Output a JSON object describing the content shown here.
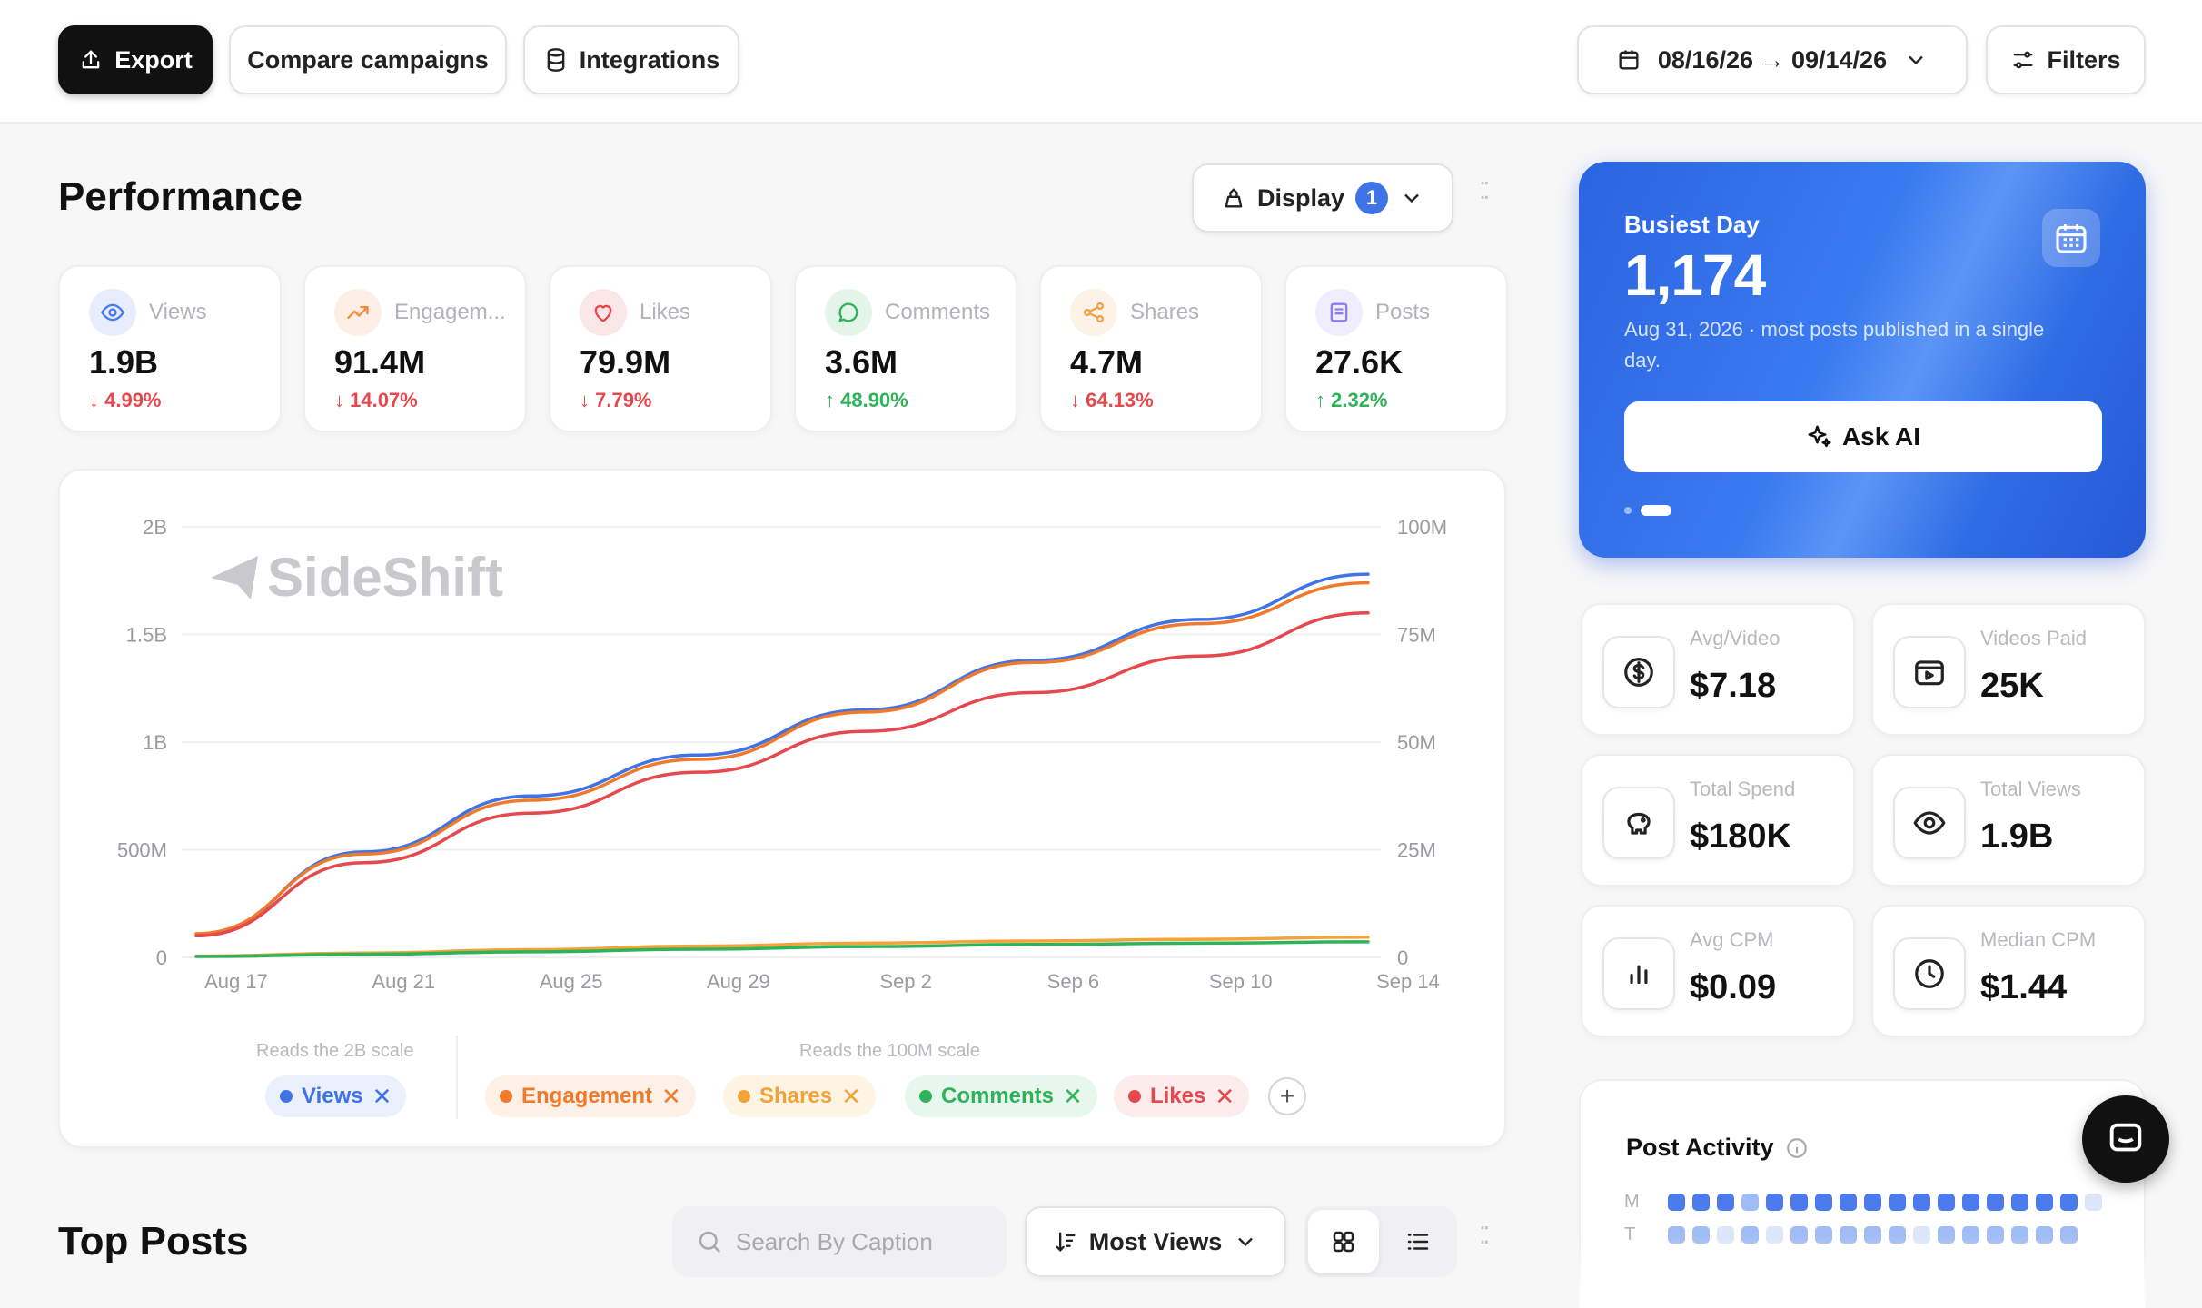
{
  "toolbar": {
    "export_label": "Export",
    "compare_label": "Compare campaigns",
    "integrations_label": "Integrations",
    "date_range": "08/16/26 → 09/14/26",
    "filters_label": "Filters"
  },
  "performance": {
    "title": "Performance",
    "display_label": "Display",
    "display_count": "1",
    "metrics": [
      {
        "label": "Views",
        "value": "1.9B",
        "delta": "↓ 4.99%",
        "trend": "down",
        "icon": "eye-icon",
        "color": "#4b7bec"
      },
      {
        "label": "Engagem...",
        "value": "91.4M",
        "delta": "↓ 14.07%",
        "trend": "down",
        "icon": "trend-up-icon",
        "color": "#f08a3c"
      },
      {
        "label": "Likes",
        "value": "79.9M",
        "delta": "↓ 7.79%",
        "trend": "down",
        "icon": "heart-icon",
        "color": "#e5484d"
      },
      {
        "label": "Comments",
        "value": "3.6M",
        "delta": "↑ 48.90%",
        "trend": "up",
        "icon": "comment-icon",
        "color": "#2fb35a"
      },
      {
        "label": "Shares",
        "value": "4.7M",
        "delta": "↓ 64.13%",
        "trend": "down",
        "icon": "share-icon",
        "color": "#f2a14a"
      },
      {
        "label": "Posts",
        "value": "27.6K",
        "delta": "↑ 2.32%",
        "trend": "up",
        "icon": "posts-icon",
        "color": "#8b7cf6"
      }
    ]
  },
  "chart": {
    "watermark": "SideShift",
    "left_scale_caption": "Reads the 2B scale",
    "right_scale_caption": "Reads the 100M scale",
    "legend": [
      {
        "name": "Views",
        "color": "#3f73e6",
        "bg": "#eaf1fd"
      },
      {
        "name": "Engagement",
        "color": "#f07a2c",
        "bg": "#fdf0e6"
      },
      {
        "name": "Shares",
        "color": "#f2a33a",
        "bg": "#fdf4e4"
      },
      {
        "name": "Comments",
        "color": "#2fb35a",
        "bg": "#e8f7ed"
      },
      {
        "name": "Likes",
        "color": "#e5484d",
        "bg": "#fdecec"
      }
    ]
  },
  "chart_data": {
    "type": "line",
    "x": [
      "Aug 17",
      "Aug 21",
      "Aug 25",
      "Aug 29",
      "Sep 2",
      "Sep 6",
      "Sep 10",
      "Sep 14"
    ],
    "y_left": {
      "ticks": [
        "0",
        "500M",
        "1B",
        "1.5B",
        "2B"
      ],
      "ylim": [
        0,
        2000000000
      ]
    },
    "y_right": {
      "ticks": [
        "0",
        "25M",
        "50M",
        "75M",
        "100M"
      ],
      "ylim": [
        0,
        100000000
      ]
    },
    "series": [
      {
        "name": "Views",
        "axis": "left",
        "color": "#3f73e6",
        "values": [
          100000000,
          490000000,
          750000000,
          940000000,
          1150000000,
          1380000000,
          1570000000,
          1780000000
        ]
      },
      {
        "name": "Engagement",
        "axis": "right",
        "color": "#f07a2c",
        "values": [
          5500000,
          24000000,
          36500000,
          46000000,
          57000000,
          68500000,
          77500000,
          87000000
        ]
      },
      {
        "name": "Likes",
        "axis": "right",
        "color": "#e5484d",
        "values": [
          5000000,
          22000000,
          33500000,
          43000000,
          52500000,
          61500000,
          70000000,
          80000000
        ]
      },
      {
        "name": "Shares",
        "axis": "right",
        "color": "#f2a33a",
        "values": [
          300000,
          1000000,
          1800000,
          2600000,
          3300000,
          3800000,
          4200000,
          4700000
        ]
      },
      {
        "name": "Comments",
        "axis": "right",
        "color": "#2fb35a",
        "values": [
          200000,
          700000,
          1300000,
          1900000,
          2500000,
          3000000,
          3300000,
          3600000
        ]
      }
    ],
    "grid": true
  },
  "busiest": {
    "label": "Busiest Day",
    "value": "1,174",
    "description": "Aug 31, 2026 · most posts published in a single day.",
    "ask_ai_label": "Ask AI"
  },
  "stats": [
    {
      "label": "Avg/Video",
      "value": "$7.18",
      "icon": "dollar-icon"
    },
    {
      "label": "Videos Paid",
      "value": "25K",
      "icon": "video-icon"
    },
    {
      "label": "Total Spend",
      "value": "$180K",
      "icon": "piggy-bank-icon"
    },
    {
      "label": "Total Views",
      "value": "1.9B",
      "icon": "eye-icon"
    },
    {
      "label": "Avg CPM",
      "value": "$0.09",
      "icon": "bar-chart-icon"
    },
    {
      "label": "Median CPM",
      "value": "$1.44",
      "icon": "clock-icon"
    }
  ],
  "activity": {
    "title": "Post Activity",
    "rows": [
      {
        "label": "M",
        "levels": [
          3,
          3,
          3,
          2,
          3,
          3,
          3,
          3,
          3,
          3,
          3,
          3,
          3,
          3,
          3,
          3,
          3,
          1
        ]
      },
      {
        "label": "T",
        "levels": [
          2,
          2,
          1,
          2,
          1,
          2,
          2,
          2,
          2,
          2,
          1,
          2,
          2,
          2,
          2,
          2,
          2
        ]
      }
    ]
  },
  "top_posts": {
    "title": "Top Posts",
    "search_placeholder": "Search By Caption",
    "sort_label": "Most Views"
  }
}
